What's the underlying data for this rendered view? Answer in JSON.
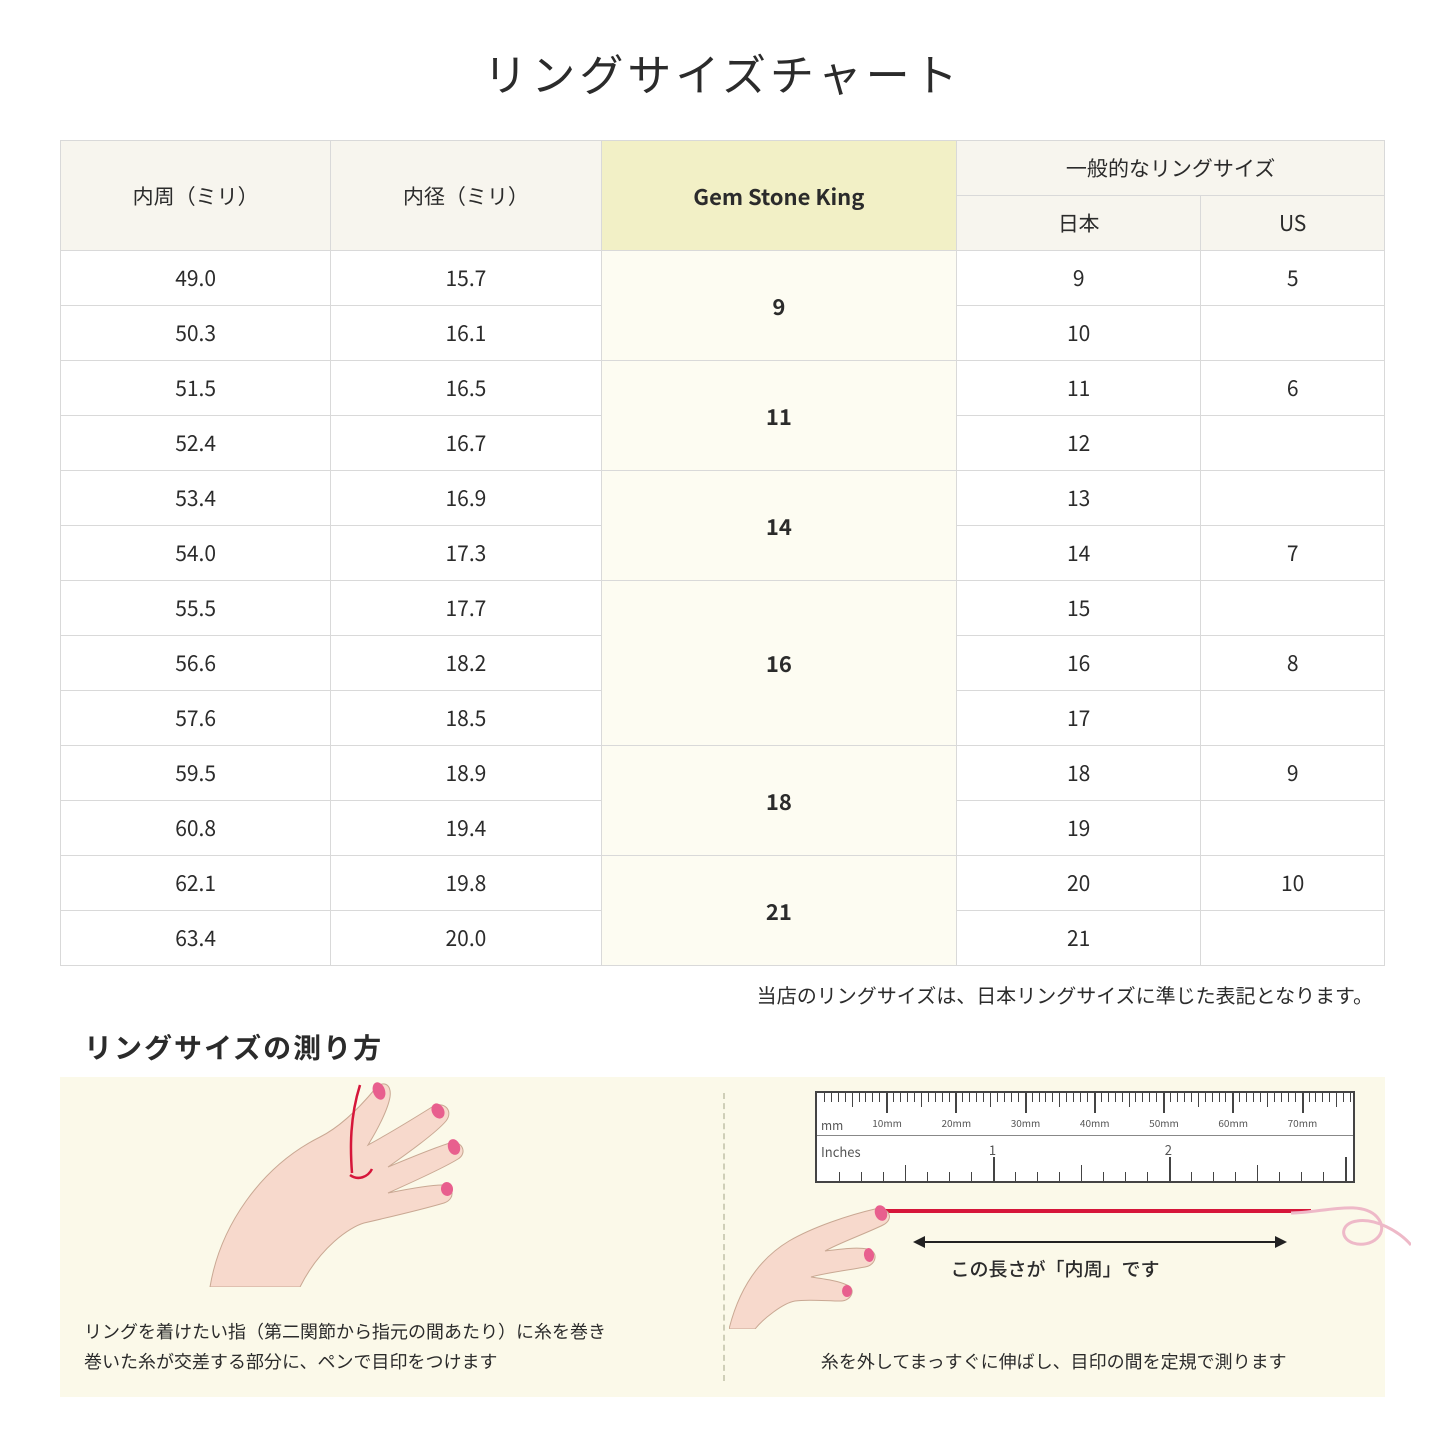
{
  "title": "リングサイズチャート",
  "table": {
    "header": {
      "col1": "内周（ミリ）",
      "col2": "内径（ミリ）",
      "col3": "Gem Stone King",
      "col4_group": "一般的なリングサイズ",
      "col4a": "日本",
      "col4b": "US"
    },
    "groups": [
      {
        "gsk": "9",
        "rows": [
          {
            "c": "49.0",
            "d": "15.7",
            "jp": "9",
            "us": "5"
          },
          {
            "c": "50.3",
            "d": "16.1",
            "jp": "10",
            "us": ""
          }
        ]
      },
      {
        "gsk": "11",
        "rows": [
          {
            "c": "51.5",
            "d": "16.5",
            "jp": "11",
            "us": "6"
          },
          {
            "c": "52.4",
            "d": "16.7",
            "jp": "12",
            "us": ""
          }
        ]
      },
      {
        "gsk": "14",
        "rows": [
          {
            "c": "53.4",
            "d": "16.9",
            "jp": "13",
            "us": ""
          },
          {
            "c": "54.0",
            "d": "17.3",
            "jp": "14",
            "us": "7"
          }
        ]
      },
      {
        "gsk": "16",
        "rows": [
          {
            "c": "55.5",
            "d": "17.7",
            "jp": "15",
            "us": ""
          },
          {
            "c": "56.6",
            "d": "18.2",
            "jp": "16",
            "us": "8"
          },
          {
            "c": "57.6",
            "d": "18.5",
            "jp": "17",
            "us": ""
          }
        ]
      },
      {
        "gsk": "18",
        "rows": [
          {
            "c": "59.5",
            "d": "18.9",
            "jp": "18",
            "us": "9"
          },
          {
            "c": "60.8",
            "d": "19.4",
            "jp": "19",
            "us": ""
          }
        ]
      },
      {
        "gsk": "21",
        "rows": [
          {
            "c": "62.1",
            "d": "19.8",
            "jp": "20",
            "us": "10"
          },
          {
            "c": "63.4",
            "d": "20.0",
            "jp": "21",
            "us": ""
          }
        ]
      }
    ]
  },
  "note": "当店のリングサイズは、日本リングサイズに準じた表記となります。",
  "subtitle": "リングサイズの測り方",
  "left_caption_1": "リングを着けたい指（第二関節から指元の間あたり）に糸を巻き",
  "left_caption_2": "巻いた糸が交差する部分に、ペンで目印をつけます",
  "right_len_label": "この長さが「内周」です",
  "right_caption": "糸を外してまっすぐに伸ばし、目印の間を定規で測ります",
  "ruler": {
    "mm_label": "mm",
    "in_label": "Inches",
    "mm_marks": [
      "10mm",
      "20mm",
      "30mm",
      "40mm",
      "50mm",
      "60mm",
      "70mm"
    ],
    "in_marks": [
      "1",
      "2"
    ]
  },
  "colors": {
    "header_bg": "#f7f5ee",
    "gsk_header_bg": "#f2f0c6",
    "gsk_cell_bg": "#fdfcf2",
    "panel_bg": "#fbf9e9",
    "border": "#d9d9d9",
    "thread": "#d6163a",
    "skin": "#f7d9cc",
    "nail": "#e85f8e"
  }
}
